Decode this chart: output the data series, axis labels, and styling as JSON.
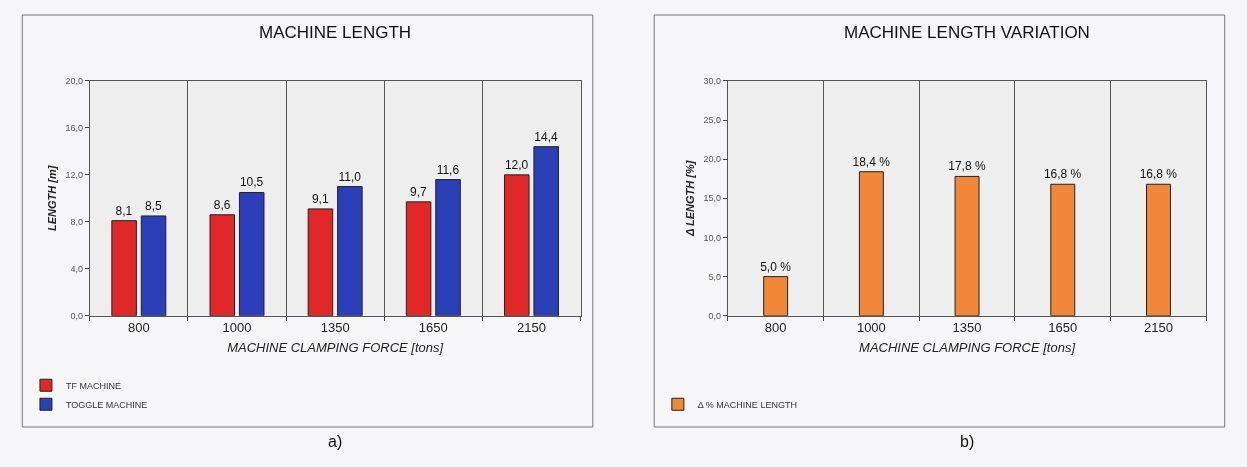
{
  "chart_data": [
    {
      "type": "bar",
      "title": "MACHINE LENGTH",
      "xlabel": "MACHINE CLAMPING FORCE [tons]",
      "ylabel": "LENGTH [m]",
      "categories": [
        "800",
        "1000",
        "1350",
        "1650",
        "2150"
      ],
      "series": [
        {
          "name": "TF MACHINE",
          "color": "#e02828",
          "values": [
            8.1,
            8.6,
            9.1,
            9.7,
            12.0
          ],
          "value_labels": [
            "8,1",
            "8,6",
            "9,1",
            "9,7",
            "12,0"
          ]
        },
        {
          "name": "TOGGLE MACHINE",
          "color": "#2a3fb8",
          "values": [
            8.5,
            10.5,
            11.0,
            11.6,
            14.4
          ],
          "value_labels": [
            "8,5",
            "10,5",
            "11,0",
            "11,6",
            "14,4"
          ]
        }
      ],
      "ylim": [
        0,
        20
      ],
      "yticks": [
        {
          "value": 0,
          "label": "0,0"
        },
        {
          "value": 4,
          "label": "4,0"
        },
        {
          "value": 8,
          "label": "8,0"
        },
        {
          "value": 12,
          "label": "12,0"
        },
        {
          "value": 16,
          "label": "16,0"
        },
        {
          "value": 20,
          "label": "20,0"
        }
      ],
      "grid": "x",
      "legend": "bottom left",
      "annotations": [
        "a)"
      ]
    },
    {
      "type": "bar",
      "title": "MACHINE LENGTH VARIATION",
      "xlabel": "MACHINE CLAMPING FORCE [tons]",
      "ylabel": "Δ LENGTH [%]",
      "categories": [
        "800",
        "1000",
        "1350",
        "1650",
        "2150"
      ],
      "series": [
        {
          "name": "Δ % MACHINE LENGTH",
          "color": "#f0883a",
          "values": [
            5.0,
            18.4,
            17.8,
            16.8,
            16.8
          ],
          "value_labels": [
            "5,0 %",
            "18,4 %",
            "17,8 %",
            "16,8 %",
            "16,8 %"
          ]
        }
      ],
      "ylim": [
        0,
        30
      ],
      "yticks": [
        {
          "value": 0,
          "label": "0,0"
        },
        {
          "value": 5,
          "label": "5,0"
        },
        {
          "value": 10,
          "label": "10,0"
        },
        {
          "value": 15,
          "label": "15,0"
        },
        {
          "value": 20,
          "label": "20,0"
        },
        {
          "value": 25,
          "label": "25,0"
        },
        {
          "value": 30,
          "label": "30,0"
        }
      ],
      "grid": "x",
      "legend": "bottom left",
      "annotations": [
        "b)"
      ]
    }
  ]
}
